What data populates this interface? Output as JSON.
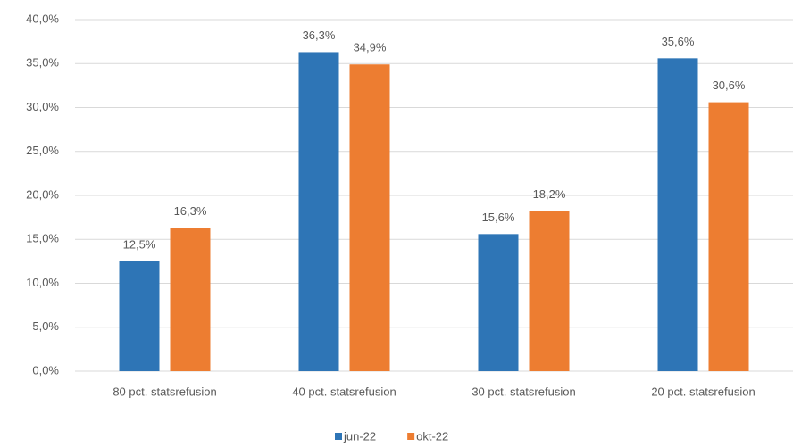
{
  "chart_data": {
    "type": "bar",
    "categories": [
      "80 pct. statsrefusion",
      "40 pct. statsrefusion",
      "30 pct. statsrefusion",
      "20 pct. statsrefusion"
    ],
    "series": [
      {
        "name": "jun-22",
        "color": "#2e75b6",
        "values": [
          12.5,
          36.3,
          15.6,
          35.6
        ],
        "value_labels": [
          "12,5%",
          "36,3%",
          "15,6%",
          "35,6%"
        ]
      },
      {
        "name": "okt-22",
        "color": "#ed7d31",
        "values": [
          16.3,
          34.9,
          18.2,
          30.6
        ],
        "value_labels": [
          "16,3%",
          "34,9%",
          "18,2%",
          "30,6%"
        ]
      }
    ],
    "ylim": [
      0,
      40
    ],
    "yticks": [
      {
        "value": 0,
        "label": "0,0%"
      },
      {
        "value": 5,
        "label": "5,0%"
      },
      {
        "value": 10,
        "label": "10,0%"
      },
      {
        "value": 15,
        "label": "15,0%"
      },
      {
        "value": 20,
        "label": "20,0%"
      },
      {
        "value": 25,
        "label": "25,0%"
      },
      {
        "value": 30,
        "label": "30,0%"
      },
      {
        "value": 35,
        "label": "35,0%"
      },
      {
        "value": 40,
        "label": "40,0%"
      }
    ],
    "grid": true
  }
}
